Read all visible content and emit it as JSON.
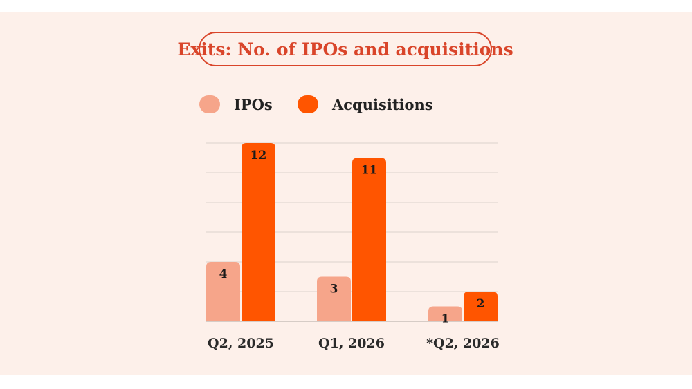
{
  "chart_data": {
    "type": "bar",
    "title": "Exits: No. of IPOs and acquisitions",
    "categories": [
      "Q2, 2025",
      "Q1, 2026",
      "*Q2, 2026"
    ],
    "series": [
      {
        "name": "IPOs",
        "values": [
          4,
          3,
          1
        ],
        "color": "#f6a58a"
      },
      {
        "name": "Acquisitions",
        "values": [
          12,
          11,
          2
        ],
        "color": "#ff5500"
      }
    ],
    "ylim": [
      0,
      12
    ],
    "grid": true,
    "legend": "top-left"
  },
  "colors": {
    "background": "#fdf0ea",
    "title": "#d9452a",
    "grid": "#e6dcd6"
  }
}
